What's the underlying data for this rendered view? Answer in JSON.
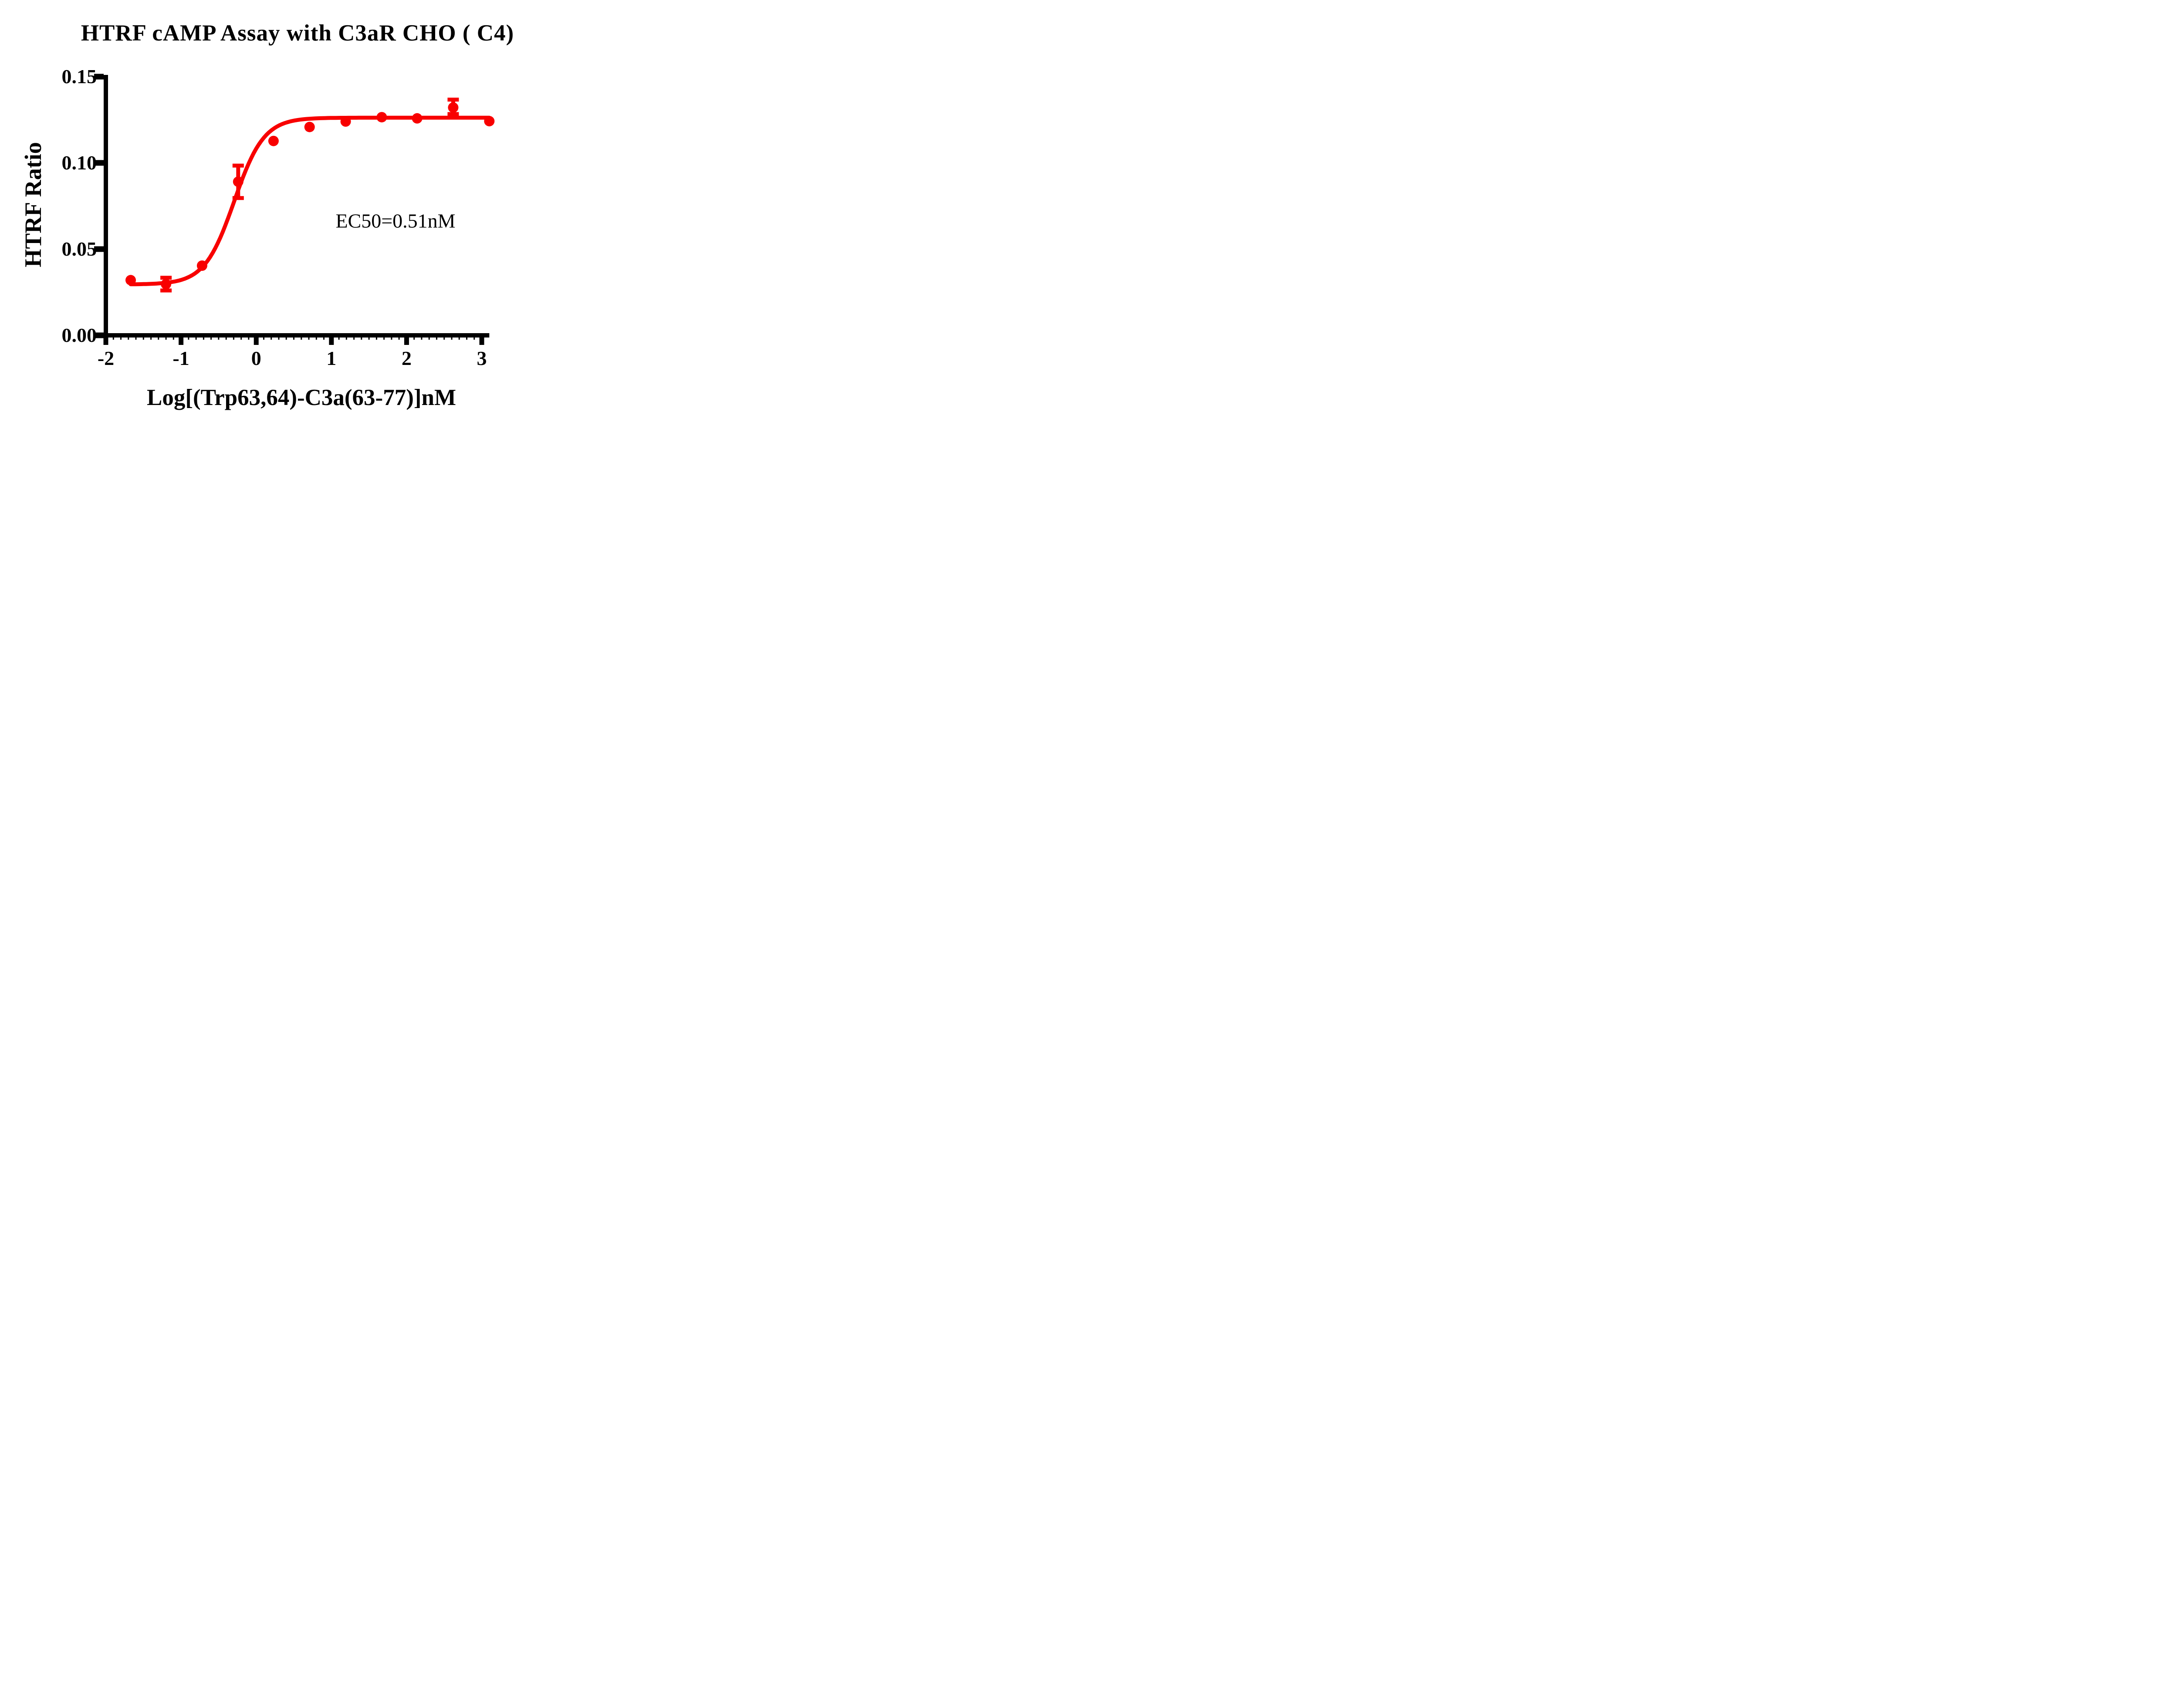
{
  "title": "HTRF cAMP Assay with C3aR CHO ( C4)",
  "axes": {
    "x": {
      "label": "Log[(Trp63,64)-C3a(63-77)]nM"
    },
    "y": {
      "label": "HTRF Ratio"
    }
  },
  "annotation": {
    "ec50": "EC50=0.51nM"
  },
  "colors": {
    "series": "#F80000",
    "axis": "#000000",
    "background": "#FFFFFF"
  },
  "chart_data": {
    "type": "scatter",
    "title": "HTRF cAMP Assay with C3aR CHO ( C4)",
    "xlabel": "Log[(Trp63,64)-C3a(63-77)]nM",
    "ylabel": "HTRF Ratio",
    "xlim": [
      -2,
      3.1
    ],
    "ylim": [
      0,
      0.15
    ],
    "x_ticks_labels": [
      "-2",
      "-1",
      "0",
      "1",
      "2",
      "3"
    ],
    "x_tick_values": [
      -2,
      -1,
      0,
      1,
      2,
      3
    ],
    "y_ticks_labels": [
      "0.00",
      "0.05",
      "0.10",
      "0.15"
    ],
    "y_tick_values": [
      0,
      0.05,
      0.1,
      0.15
    ],
    "x_minor_tick_step": 0.1,
    "grid": false,
    "legend": false,
    "x": [
      -1.67,
      -1.2,
      -0.72,
      -0.24,
      0.23,
      0.71,
      1.19,
      1.67,
      2.14,
      2.62,
      3.1
    ],
    "series": [
      {
        "name": "HTRF Ratio",
        "color": "#F80000",
        "values": [
          0.032,
          0.0297,
          0.0404,
          0.0891,
          0.1127,
          0.1208,
          0.124,
          0.1265,
          0.1258,
          0.1321,
          0.1242
        ],
        "error_minus": [
          0,
          0.0037,
          0,
          0.0095,
          0,
          0,
          0,
          0,
          0,
          0.0038,
          0
        ],
        "error_plus": [
          0,
          0.0037,
          0,
          0.0093,
          0,
          0,
          0,
          0,
          0,
          0.0046,
          0
        ]
      }
    ],
    "fit_curve": {
      "model": "4-parameter logistic (sigmoidal dose-response)",
      "bottom": 0.0295,
      "top": 0.1262,
      "logEC50": -0.292,
      "hill": 2.2,
      "x_start": -1.67,
      "x_end": 3.1
    },
    "ec50_label": "EC50=0.51nM"
  }
}
